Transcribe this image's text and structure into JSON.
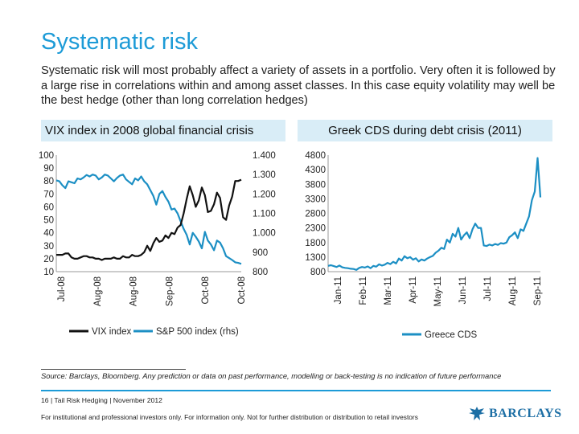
{
  "slide": {
    "title": "Systematic risk",
    "intro": "Systematic risk will most probably affect a variety of assets in a portfolio. Very often it is followed by a large rise in correlations within and among asset classes. In this case equity volatility may well be the best hedge (other than long correlation hedges)"
  },
  "left_panel": {
    "heading": "VIX index in 2008 global financial crisis"
  },
  "right_panel": {
    "heading": "Greek CDS during debt crisis (2011)"
  },
  "source": "Source: Barclays, Bloomberg. Any prediction or data on past performance, modelling or back-testing is no indication of future performance",
  "footer": "16   |   Tail Risk Hedging  |  November 2012",
  "disclaimer": "For institutional and professional investors only. For information only. Not for further distribution or distribution to retail investors",
  "logo": {
    "text": "BARCLAYS",
    "icon": "eagle-icon",
    "color": "#1d6fa5"
  },
  "colors": {
    "accent": "#1d9bd7",
    "header_bg": "#d9edf7",
    "vix": "#111111",
    "spx": "#1c8fc4",
    "cds": "#1c8fc4"
  },
  "chart_data": [
    {
      "type": "line",
      "title": "VIX index in 2008 global financial crisis",
      "x_tick_labels": [
        "Jul-08",
        "Aug-08",
        "Aug-08",
        "Sep-08",
        "Oct-08",
        "Oct-08"
      ],
      "y_left": {
        "ticks": [
          "100",
          "90",
          "80",
          "70",
          "60",
          "50",
          "40",
          "30",
          "20",
          "10"
        ],
        "ylim": [
          10,
          100
        ]
      },
      "y_right": {
        "ticks": [
          "1.400",
          "1.300",
          "1.200",
          "1.100",
          "1.000",
          "900",
          "800"
        ],
        "ylim": [
          800,
          1400
        ]
      },
      "legend_placement": "bottom",
      "series": [
        {
          "name": "VIX index",
          "axis": "left",
          "values": [
            23,
            23,
            23,
            24,
            24,
            21,
            20,
            20,
            21,
            22,
            22,
            21,
            21,
            20,
            20,
            19,
            20,
            20,
            20,
            21,
            20,
            20,
            22,
            21,
            21,
            23,
            22,
            22,
            23,
            25,
            30,
            26,
            32,
            36,
            33,
            34,
            38,
            36,
            40,
            39,
            44,
            46,
            55,
            66,
            76,
            69,
            60,
            65,
            75,
            69,
            56,
            57,
            62,
            71,
            67,
            52,
            50,
            61,
            68,
            80,
            80,
            81
          ]
        },
        {
          "name": "S&P 500 index (rhs)",
          "axis": "right",
          "values": [
            1270,
            1265,
            1245,
            1230,
            1265,
            1260,
            1255,
            1280,
            1275,
            1285,
            1298,
            1290,
            1300,
            1295,
            1275,
            1285,
            1300,
            1295,
            1280,
            1265,
            1282,
            1295,
            1300,
            1275,
            1262,
            1250,
            1280,
            1270,
            1290,
            1265,
            1250,
            1220,
            1190,
            1145,
            1200,
            1215,
            1185,
            1160,
            1120,
            1125,
            1100,
            1060,
            1020,
            990,
            940,
            1000,
            980,
            955,
            920,
            1005,
            960,
            940,
            910,
            960,
            950,
            920,
            880,
            870,
            860,
            848,
            845,
            840
          ]
        }
      ]
    },
    {
      "type": "line",
      "title": "Greek CDS during debt crisis (2011)",
      "x_tick_labels": [
        "Jan-11",
        "Feb-11",
        "Mar-11",
        "Apr-11",
        "May-11",
        "Jun-11",
        "Jul-11",
        "Aug-11",
        "Sep-11"
      ],
      "ylim": [
        800,
        4800
      ],
      "y_ticks": [
        "4800",
        "4300",
        "3800",
        "3300",
        "2800",
        "2300",
        "1800",
        "1300",
        "800"
      ],
      "legend_placement": "bottom",
      "series": [
        {
          "name": "Greece CDS",
          "values": [
            1000,
            1020,
            990,
            960,
            1010,
            950,
            930,
            920,
            900,
            890,
            860,
            930,
            960,
            940,
            980,
            920,
            1000,
            970,
            1050,
            1010,
            1040,
            1100,
            1060,
            1140,
            1080,
            1250,
            1180,
            1330,
            1260,
            1300,
            1210,
            1260,
            1150,
            1220,
            1180,
            1250,
            1300,
            1340,
            1450,
            1520,
            1620,
            1580,
            1900,
            1800,
            2100,
            2000,
            2300,
            1900,
            2050,
            2150,
            1950,
            2250,
            2450,
            2300,
            2300,
            1700,
            1680,
            1730,
            1700,
            1750,
            1720,
            1780,
            1760,
            1800,
            1980,
            2050,
            2150,
            1950,
            2250,
            2200,
            2450,
            2700,
            3250,
            3550,
            4700,
            3350
          ]
        }
      ]
    }
  ]
}
